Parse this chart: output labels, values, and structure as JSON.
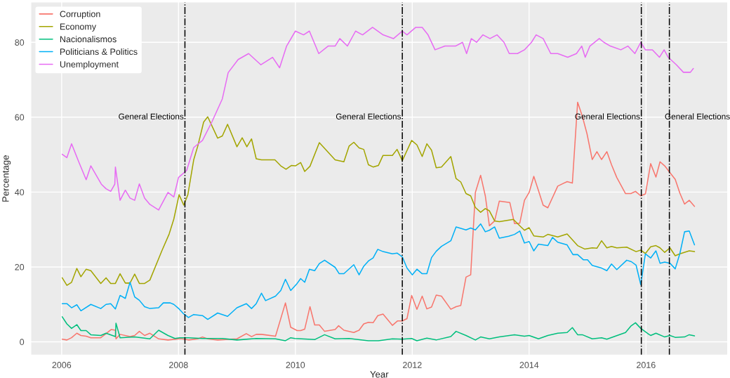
{
  "chart_data": {
    "type": "line",
    "xlabel": "Year",
    "ylabel": "Percentage",
    "xlim": [
      2005.47,
      2017.4
    ],
    "ylim": [
      -3.6,
      90.8
    ],
    "xticks": [
      2006,
      2008,
      2010,
      2012,
      2014,
      2016
    ],
    "yticks": [
      0,
      20,
      40,
      60,
      80
    ],
    "grid": true,
    "legend": "top left",
    "line_style": "solid",
    "marker": "none",
    "ref_lines": [
      {
        "axis": "x",
        "value": 2008.11,
        "label": "General Elections",
        "color": "#000000",
        "line_style": "dashdot"
      },
      {
        "axis": "x",
        "value": 2011.83,
        "label": "General Elections",
        "color": "#000000",
        "line_style": "dashdot"
      },
      {
        "axis": "x",
        "value": 2015.92,
        "label": "General Elections",
        "color": "#000000",
        "line_style": "dashdot"
      },
      {
        "axis": "x",
        "value": 2016.4,
        "label": "General Elections",
        "color": "#000000",
        "line_style": "dashdot"
      }
    ],
    "series": [
      {
        "name": "Corruption",
        "color": "#f8766d",
        "x": [
          2006.01,
          2006.09,
          2006.17,
          2006.26,
          2006.33,
          2006.42,
          2006.5,
          2006.67,
          2006.76,
          2006.85,
          2006.92,
          2006.93,
          2007.0,
          2007.17,
          2007.25,
          2007.33,
          2007.42,
          2007.51,
          2007.66,
          2007.82,
          2008.01,
          2008.06,
          2008.17,
          2008.33,
          2008.41,
          2008.5,
          2008.67,
          2009.0,
          2009.16,
          2009.25,
          2009.33,
          2009.42,
          2009.66,
          2009.83,
          2009.92,
          2010.03,
          2010.09,
          2010.16,
          2010.25,
          2010.33,
          2010.41,
          2010.5,
          2010.68,
          2010.74,
          2010.83,
          2011.0,
          2011.09,
          2011.17,
          2011.25,
          2011.33,
          2011.41,
          2011.5,
          2011.66,
          2011.75,
          2011.83,
          2011.91,
          2011.99,
          2012.08,
          2012.17,
          2012.25,
          2012.33,
          2012.41,
          2012.5,
          2012.66,
          2012.75,
          2012.83,
          2012.92,
          2013.0,
          2013.08,
          2013.17,
          2013.25,
          2013.32,
          2013.41,
          2013.49,
          2013.67,
          2013.75,
          2013.84,
          2013.92,
          2014.0,
          2014.08,
          2014.16,
          2014.24,
          2014.32,
          2014.49,
          2014.57,
          2014.65,
          2014.74,
          2014.83,
          2014.91,
          2014.99,
          2015.08,
          2015.16,
          2015.24,
          2015.33,
          2015.41,
          2015.5,
          2015.65,
          2015.74,
          2015.82,
          2015.91,
          2015.99,
          2016.08,
          2016.17,
          2016.24,
          2016.32,
          2016.41,
          2016.5,
          2016.58,
          2016.66,
          2016.74,
          2016.83
        ],
        "values": [
          0.7,
          0.5,
          1.1,
          2.3,
          1.7,
          1.5,
          1.1,
          1.1,
          2.2,
          3.3,
          3.1,
          0.8,
          2.0,
          1.4,
          1.7,
          2.8,
          1.7,
          2.3,
          0.8,
          0.5,
          0.8,
          0.8,
          0.5,
          0.8,
          1.3,
          0.8,
          0.5,
          0.8,
          2.2,
          1.4,
          2.0,
          2.0,
          1.5,
          10.4,
          3.9,
          3.0,
          3.0,
          3.4,
          9.4,
          4.5,
          4.5,
          2.8,
          3.3,
          4.3,
          3.1,
          2.5,
          3.1,
          4.8,
          5.2,
          5.1,
          7.0,
          7.4,
          4.4,
          5.6,
          5.6,
          6.2,
          12.4,
          8.7,
          12.2,
          8.8,
          9.3,
          12.5,
          12.2,
          8.7,
          9.4,
          9.7,
          17.3,
          17.9,
          39.9,
          44.5,
          39.0,
          31.0,
          32.3,
          37.6,
          37.2,
          31.6,
          31.7,
          37.8,
          39.9,
          44.2,
          40.4,
          36.5,
          35.8,
          41.6,
          42.2,
          42.8,
          42.4,
          64.0,
          60.3,
          55.6,
          48.7,
          50.8,
          48.7,
          50.8,
          47.3,
          43.9,
          39.6,
          39.6,
          40.2,
          39.0,
          39.5,
          47.6,
          44.0,
          48.1,
          47.0,
          45.2,
          43.4,
          39.7,
          36.8,
          37.8,
          36.2
        ]
      },
      {
        "name": "Economy",
        "color": "#a3a500",
        "x": [
          2006.01,
          2006.09,
          2006.17,
          2006.26,
          2006.33,
          2006.42,
          2006.5,
          2006.67,
          2006.76,
          2006.84,
          2006.92,
          2007.0,
          2007.09,
          2007.17,
          2007.25,
          2007.33,
          2007.42,
          2007.51,
          2007.72,
          2007.84,
          2007.92,
          2008.01,
          2008.09,
          2008.16,
          2008.26,
          2008.33,
          2008.43,
          2008.5,
          2008.67,
          2008.75,
          2008.84,
          2009.0,
          2009.09,
          2009.17,
          2009.25,
          2009.33,
          2009.42,
          2009.65,
          2009.75,
          2009.84,
          2009.93,
          2010.0,
          2010.09,
          2010.16,
          2010.25,
          2010.41,
          2010.68,
          2010.83,
          2010.92,
          2011.0,
          2011.09,
          2011.17,
          2011.25,
          2011.33,
          2011.42,
          2011.5,
          2011.66,
          2011.74,
          2011.83,
          2011.99,
          2012.08,
          2012.17,
          2012.25,
          2012.33,
          2012.41,
          2012.5,
          2012.66,
          2012.75,
          2012.83,
          2012.92,
          2013.0,
          2013.08,
          2013.17,
          2013.25,
          2013.32,
          2013.41,
          2013.49,
          2013.73,
          2013.82,
          2013.92,
          2014.0,
          2014.08,
          2014.24,
          2014.32,
          2014.49,
          2014.65,
          2014.83,
          2014.95,
          2015.08,
          2015.16,
          2015.24,
          2015.33,
          2015.41,
          2015.5,
          2015.67,
          2015.83,
          2015.91,
          2015.99,
          2016.08,
          2016.17,
          2016.24,
          2016.32,
          2016.41,
          2016.5,
          2016.58,
          2016.74,
          2016.83
        ],
        "values": [
          17.1,
          15.1,
          15.9,
          19.6,
          17.4,
          19.4,
          19.0,
          15.6,
          17.1,
          15.6,
          15.6,
          18.2,
          15.7,
          15.7,
          18.1,
          15.6,
          15.6,
          16.5,
          24.5,
          28.8,
          32.8,
          39.3,
          36.5,
          39.3,
          48.6,
          52.3,
          58.7,
          60.1,
          54.4,
          55.0,
          58.1,
          52.1,
          54.5,
          52.1,
          54.2,
          48.9,
          48.6,
          48.6,
          47.0,
          46.1,
          47.1,
          47.0,
          47.9,
          45.5,
          46.9,
          53.2,
          48.6,
          48.1,
          52.3,
          53.3,
          51.8,
          51.4,
          47.3,
          46.7,
          47.1,
          49.8,
          49.8,
          51.4,
          48.4,
          53.8,
          52.6,
          49.5,
          52.9,
          51.2,
          46.5,
          46.7,
          49.5,
          43.6,
          42.7,
          39.6,
          39.0,
          35.9,
          34.6,
          35.6,
          35.0,
          32.3,
          32.1,
          32.7,
          31.3,
          29.8,
          30.5,
          28.3,
          28.0,
          28.7,
          28.0,
          28.8,
          25.7,
          24.8,
          25.1,
          25.0,
          27.0,
          25.1,
          25.5,
          25.1,
          25.3,
          24.1,
          24.5,
          23.6,
          25.4,
          25.7,
          25.1,
          23.9,
          25.1,
          23.0,
          23.5,
          24.3,
          24.1
        ]
      },
      {
        "name": "Nacionalismos",
        "color": "#00bf7d",
        "x": [
          2006.01,
          2006.09,
          2006.17,
          2006.26,
          2006.33,
          2006.42,
          2006.5,
          2006.67,
          2006.76,
          2006.92,
          2006.93,
          2007.0,
          2007.25,
          2007.51,
          2007.66,
          2007.82,
          2007.94,
          2008.02,
          2008.17,
          2008.41,
          2008.75,
          2009.0,
          2009.33,
          2009.66,
          2009.83,
          2009.92,
          2009.99,
          2010.33,
          2010.5,
          2010.68,
          2010.92,
          2011.25,
          2011.42,
          2011.66,
          2011.83,
          2011.99,
          2012.08,
          2012.25,
          2012.41,
          2012.66,
          2012.75,
          2012.92,
          2013.08,
          2013.17,
          2013.32,
          2013.49,
          2013.75,
          2013.92,
          2014.0,
          2014.16,
          2014.32,
          2014.49,
          2014.65,
          2014.74,
          2014.83,
          2014.91,
          2015.08,
          2015.24,
          2015.33,
          2015.65,
          2015.74,
          2015.82,
          2015.91,
          2016.05,
          2016.08,
          2016.17,
          2016.32,
          2016.41,
          2016.5,
          2016.66,
          2016.74,
          2016.83
        ],
        "values": [
          6.7,
          4.8,
          3.6,
          4.6,
          3.0,
          3.0,
          1.9,
          1.7,
          2.3,
          1.4,
          5.0,
          1.1,
          1.3,
          0.8,
          3.1,
          1.7,
          0.9,
          1.1,
          1.1,
          0.9,
          0.9,
          0.5,
          0.9,
          0.8,
          0.3,
          1.1,
          0.9,
          0.6,
          1.9,
          0.8,
          0.9,
          0.3,
          0.3,
          0.8,
          0.7,
          0.9,
          0.3,
          1.0,
          0.5,
          1.4,
          2.8,
          1.7,
          0.5,
          1.3,
          0.8,
          1.3,
          1.9,
          1.5,
          1.7,
          0.8,
          1.7,
          2.3,
          2.5,
          3.8,
          1.9,
          1.9,
          0.8,
          1.1,
          0.7,
          2.5,
          4.2,
          5.1,
          3.6,
          2.0,
          1.7,
          2.3,
          1.3,
          1.7,
          1.2,
          1.3,
          1.9,
          1.6
        ]
      },
      {
        "name": "Politicians & Politics",
        "color": "#00b0f6",
        "x": [
          2006.01,
          2006.09,
          2006.17,
          2006.26,
          2006.33,
          2006.5,
          2006.67,
          2006.76,
          2006.84,
          2006.92,
          2007.0,
          2007.09,
          2007.17,
          2007.25,
          2007.33,
          2007.42,
          2007.51,
          2007.66,
          2007.74,
          2007.86,
          2007.92,
          2008.01,
          2008.08,
          2008.17,
          2008.26,
          2008.41,
          2008.5,
          2008.67,
          2008.84,
          2009.0,
          2009.16,
          2009.25,
          2009.33,
          2009.42,
          2009.49,
          2009.66,
          2009.75,
          2009.83,
          2009.92,
          2010.03,
          2010.09,
          2010.16,
          2010.24,
          2010.33,
          2010.41,
          2010.5,
          2010.68,
          2010.75,
          2010.83,
          2011.0,
          2011.09,
          2011.17,
          2011.25,
          2011.33,
          2011.41,
          2011.5,
          2011.66,
          2011.74,
          2011.83,
          2011.91,
          2012.0,
          2012.08,
          2012.17,
          2012.25,
          2012.33,
          2012.41,
          2012.5,
          2012.66,
          2012.75,
          2012.92,
          2013.0,
          2013.08,
          2013.17,
          2013.25,
          2013.32,
          2013.41,
          2013.49,
          2013.65,
          2013.75,
          2013.84,
          2013.92,
          2014.0,
          2014.08,
          2014.16,
          2014.32,
          2014.4,
          2014.49,
          2014.65,
          2014.75,
          2014.83,
          2014.93,
          2015.0,
          2015.08,
          2015.24,
          2015.33,
          2015.41,
          2015.5,
          2015.67,
          2015.75,
          2015.83,
          2015.91,
          2015.99,
          2016.08,
          2016.17,
          2016.24,
          2016.32,
          2016.41,
          2016.5,
          2016.58,
          2016.66,
          2016.74,
          2016.83
        ],
        "values": [
          10.2,
          10.2,
          9.1,
          9.9,
          8.3,
          10.0,
          8.9,
          10.0,
          10.2,
          8.8,
          12.4,
          11.6,
          15.9,
          12.0,
          11.1,
          9.4,
          8.9,
          9.1,
          10.4,
          10.4,
          10.0,
          8.8,
          7.6,
          6.5,
          7.3,
          7.0,
          6.0,
          7.7,
          6.8,
          9.1,
          10.2,
          8.9,
          10.2,
          13.0,
          11.0,
          12.2,
          13.7,
          16.7,
          13.7,
          15.6,
          16.9,
          15.9,
          19.4,
          19.0,
          20.9,
          21.8,
          19.9,
          18.2,
          18.2,
          20.6,
          17.9,
          20.2,
          21.6,
          22.4,
          24.7,
          24.1,
          23.5,
          23.7,
          22.7,
          19.7,
          17.9,
          19.4,
          18.2,
          18.2,
          22.5,
          24.2,
          25.5,
          27.0,
          30.7,
          29.9,
          30.4,
          29.9,
          31.5,
          29.4,
          29.8,
          30.7,
          27.7,
          28.2,
          28.7,
          29.6,
          26.4,
          26.8,
          24.3,
          26.1,
          25.7,
          27.9,
          26.6,
          25.9,
          23.3,
          23.3,
          21.9,
          21.9,
          20.4,
          19.7,
          19.0,
          20.8,
          19.3,
          21.8,
          21.4,
          20.5,
          15.3,
          23.5,
          22.4,
          24.3,
          21.0,
          21.3,
          21.0,
          19.5,
          23.6,
          29.4,
          29.6,
          25.9
        ]
      },
      {
        "name": "Unemployment",
        "color": "#e76bf3",
        "x": [
          2006.01,
          2006.09,
          2006.17,
          2006.29,
          2006.42,
          2006.5,
          2006.68,
          2006.76,
          2006.84,
          2006.91,
          2006.92,
          2007.0,
          2007.09,
          2007.17,
          2007.25,
          2007.33,
          2007.42,
          2007.51,
          2007.66,
          2007.82,
          2007.92,
          2008.0,
          2008.14,
          2008.26,
          2008.41,
          2008.57,
          2008.75,
          2008.85,
          2009.02,
          2009.2,
          2009.41,
          2009.61,
          2009.73,
          2009.85,
          2010.0,
          2010.14,
          2010.24,
          2010.32,
          2010.4,
          2010.56,
          2010.68,
          2010.76,
          2010.89,
          2011.03,
          2011.15,
          2011.32,
          2011.5,
          2011.68,
          2011.83,
          2011.91,
          2012.06,
          2012.17,
          2012.27,
          2012.39,
          2012.56,
          2012.74,
          2012.86,
          2012.93,
          2013.01,
          2013.1,
          2013.21,
          2013.33,
          2013.45,
          2013.57,
          2013.66,
          2013.8,
          2013.92,
          2014.04,
          2014.12,
          2014.24,
          2014.37,
          2014.49,
          2014.66,
          2014.81,
          2014.9,
          2014.96,
          2015.04,
          2015.2,
          2015.28,
          2015.39,
          2015.57,
          2015.69,
          2015.81,
          2015.91,
          2015.99,
          2016.11,
          2016.23,
          2016.31,
          2016.38,
          2016.52,
          2016.64,
          2016.76,
          2016.81
        ],
        "values": [
          50.1,
          49.2,
          52.9,
          48.2,
          43.3,
          47.0,
          42.1,
          40.9,
          40.2,
          42.1,
          46.7,
          37.8,
          40.5,
          38.4,
          37.8,
          42.2,
          38.4,
          36.7,
          35.2,
          39.9,
          38.7,
          43.9,
          45.8,
          51.9,
          53.8,
          58.7,
          64.9,
          71.9,
          75.4,
          77.0,
          74.0,
          76.0,
          73.2,
          79.0,
          83.0,
          82.0,
          83.0,
          80.0,
          77.0,
          79.0,
          79.0,
          81.0,
          79.0,
          83.0,
          82.0,
          84.0,
          82.0,
          81.0,
          83.0,
          82.0,
          84.0,
          84.0,
          82.0,
          78.0,
          79.0,
          79.0,
          80.0,
          77.0,
          81.0,
          80.0,
          82.0,
          81.0,
          82.0,
          80.0,
          77.0,
          77.0,
          78.0,
          80.0,
          82.0,
          81.0,
          77.0,
          77.0,
          76.0,
          77.0,
          79.0,
          76.0,
          79.0,
          81.0,
          80.0,
          79.0,
          78.0,
          79.0,
          77.0,
          80.0,
          78.0,
          78.0,
          76.0,
          78.0,
          76.0,
          74.0,
          72.0,
          72.0,
          73.0
        ]
      }
    ]
  }
}
